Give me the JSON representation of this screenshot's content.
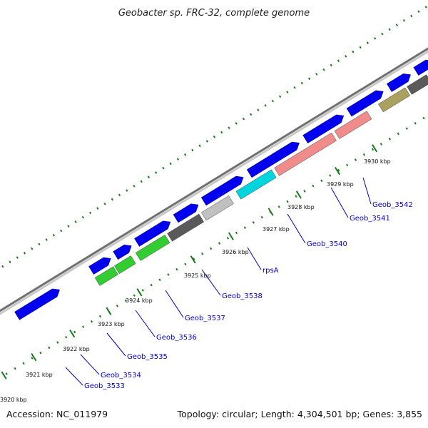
{
  "title": "Geobacter sp. FRC-32, complete genome",
  "footer": {
    "accession": "Accession: NC_011979",
    "topology": "Topology: circular; Length: 4,304,501 bp; Genes: 3,855"
  },
  "colors": {
    "backbone_dark": "#707070",
    "backbone_light": "#c8c8c8",
    "cds_forward": "#0000ee",
    "tick_mark": "#1a7a1a",
    "label_text": "#0000cc",
    "green": "#33cc33",
    "dark_gray": "#5a5a5a",
    "light_gray": "#c0c0c0",
    "cyan": "#00d4dc",
    "salmon": "#f08c8c",
    "olive": "#aaa060",
    "sky": "#00bcf2"
  },
  "scale_labels": [
    "3920 kbp",
    "3921 kbp",
    "3922 kbp",
    "3923 kbp",
    "3924 kbp",
    "3925 kbp",
    "3926 kbp",
    "3927 kbp",
    "3928 kbp",
    "3929 kbp",
    "3930 kbp"
  ],
  "gene_labels": [
    "Geob_3533",
    "Geob_3534",
    "Geob_3535",
    "Geob_3536",
    "Geob_3537",
    "Geob_3538",
    "rpsA",
    "Geob_3540",
    "Geob_3541",
    "Geob_3542"
  ]
}
